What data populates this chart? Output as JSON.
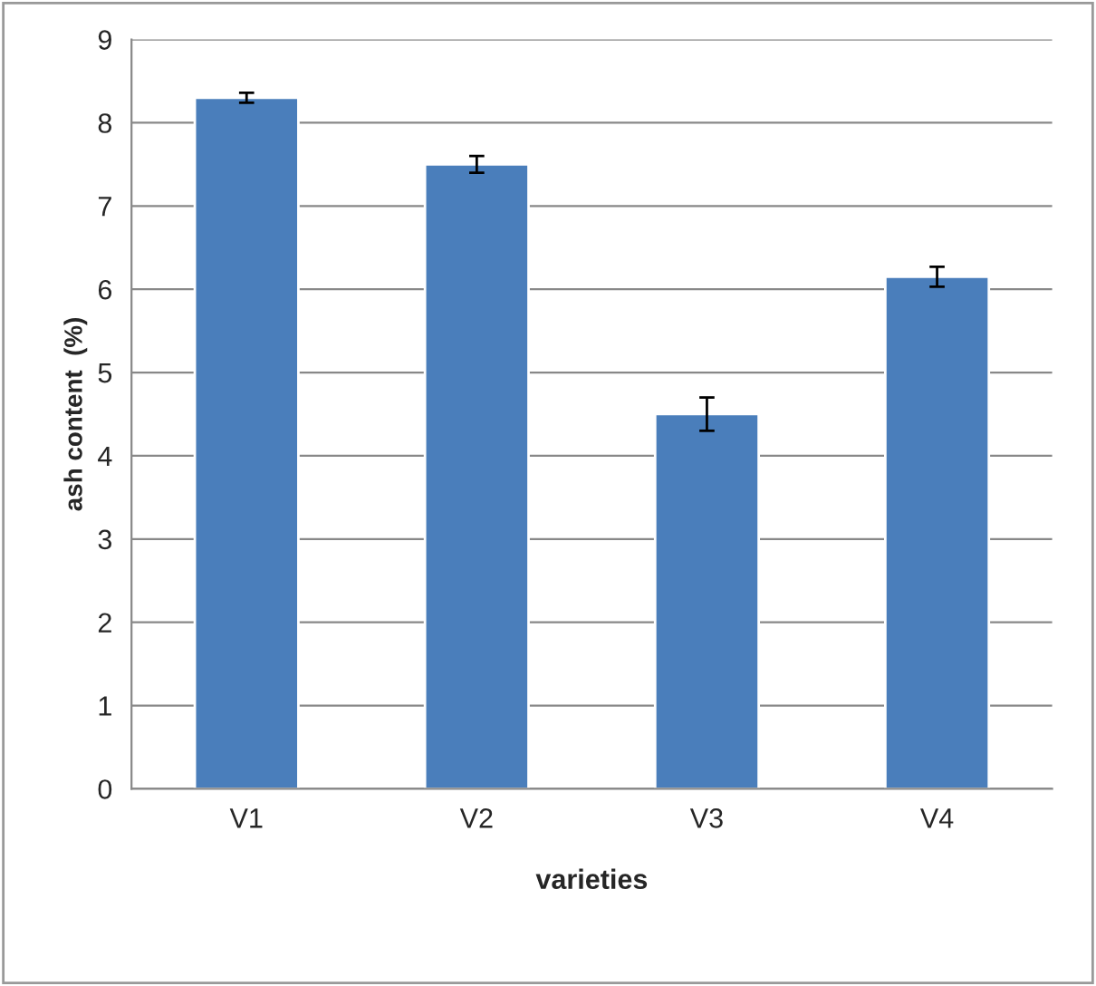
{
  "chart_data": {
    "type": "bar",
    "xlabel": "varieties",
    "ylabel": "ash content  (%)",
    "categories": [
      "V1",
      "V2",
      "V3",
      "V4"
    ],
    "values": [
      8.3,
      7.5,
      4.5,
      6.15
    ],
    "errors": [
      0.06,
      0.1,
      0.2,
      0.12
    ],
    "color": "#4a7ebb",
    "ylim": [
      0,
      9
    ],
    "yticks": [
      0,
      1,
      2,
      3,
      4,
      5,
      6,
      7,
      8,
      9
    ],
    "grid": "y",
    "legend": false
  }
}
